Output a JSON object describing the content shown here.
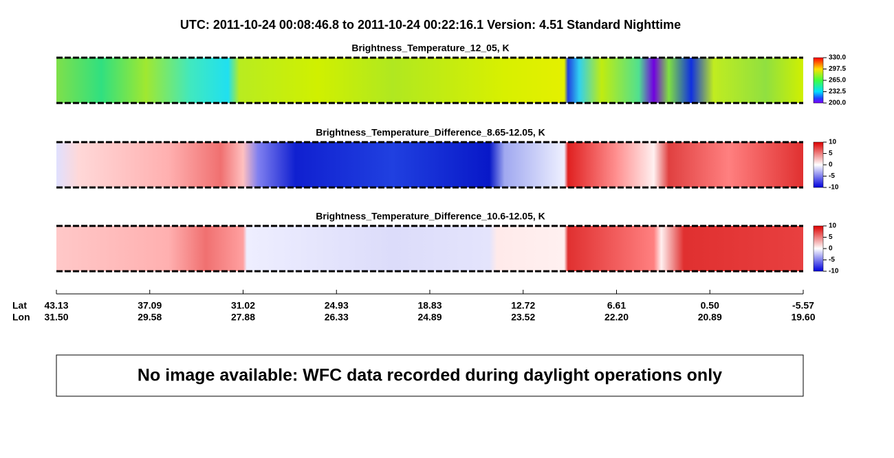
{
  "chart_data": [
    {
      "type": "heatmap",
      "title": "Brightness_Temperature_12_05, K",
      "clim": [
        200,
        330
      ],
      "cticks": [
        {
          "value": 330,
          "label": "330.0"
        },
        {
          "value": 297.5,
          "label": "297.5"
        },
        {
          "value": 265,
          "label": "265.0"
        },
        {
          "value": 232.5,
          "label": "232.5"
        },
        {
          "value": 200,
          "label": "200.0"
        }
      ]
    },
    {
      "type": "heatmap",
      "title": "Brightness_Temperature_Difference_8.65-12.05, K",
      "clim": [
        -10,
        10
      ],
      "cticks": [
        10,
        5,
        0,
        -5,
        -10
      ]
    },
    {
      "type": "heatmap",
      "title": "Brightness_Temperature_Difference_10.6-12.05, K",
      "clim": [
        -10,
        10
      ],
      "cticks": [
        10,
        5,
        0,
        -5,
        -10
      ]
    }
  ],
  "header": {
    "title": "UTC:  2011-10-24   00:08:46.8  to  2011-10-24   00:22:16.1    Version: 4.51  Standard Nighttime"
  },
  "axis": {
    "lat_label": "Lat",
    "lon_label": "Lon",
    "lat": [
      "43.13",
      "37.09",
      "31.02",
      "24.93",
      "18.83",
      "12.72",
      "6.61",
      "0.50",
      "-5.57"
    ],
    "lon": [
      "31.50",
      "29.58",
      "27.88",
      "26.33",
      "24.89",
      "23.52",
      "22.20",
      "20.89",
      "19.60"
    ]
  },
  "notice": "No image available: WFC data recorded during daylight operations only"
}
